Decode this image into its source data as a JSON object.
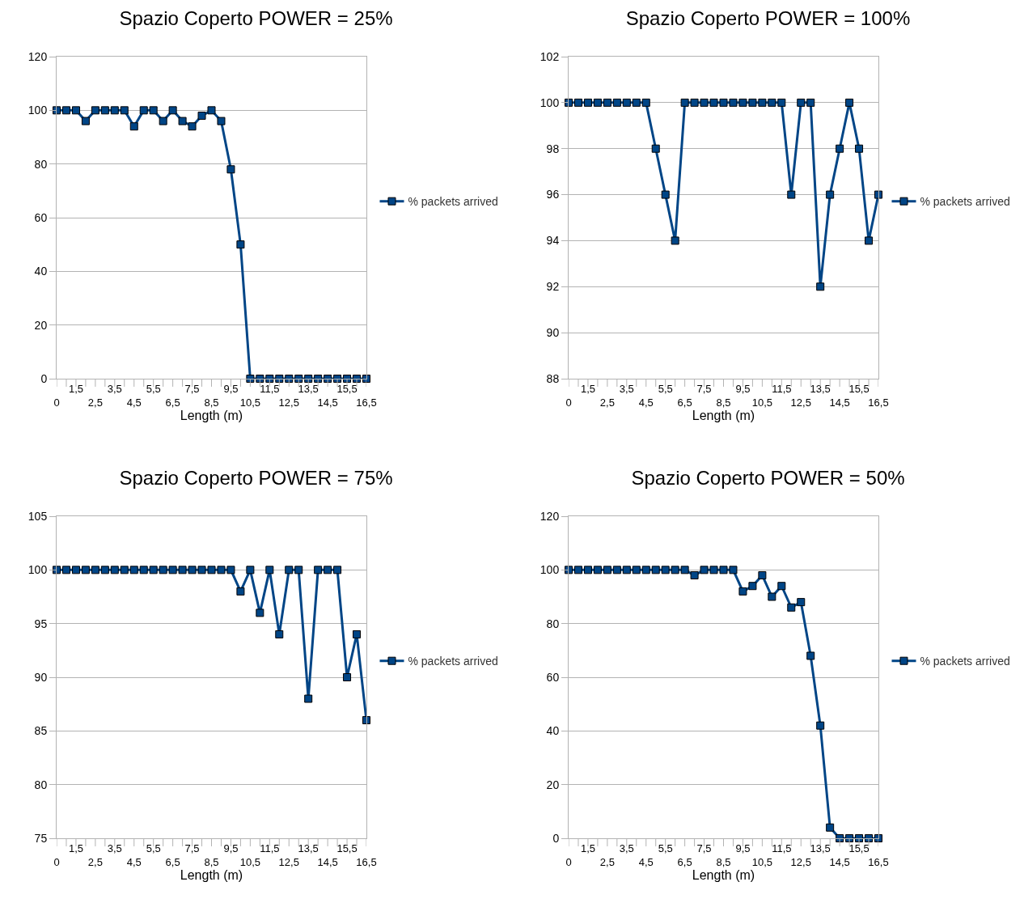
{
  "chart_data": [
    {
      "type": "line",
      "title": "Spazio Coperto POWER = 25%",
      "xlabel": "Length (m)",
      "categories": [
        "0",
        null,
        "1,5",
        null,
        "2,5",
        null,
        "3,5",
        null,
        "4,5",
        null,
        "5,5",
        null,
        "6,5",
        null,
        "7,5",
        null,
        "8,5",
        null,
        "9,5",
        null,
        "10,5",
        null,
        "11,5",
        null,
        "12,5",
        null,
        "13,5",
        null,
        "14,5",
        null,
        "15,5",
        null,
        "16,5"
      ],
      "ylim": [
        0,
        120
      ],
      "yticks": [
        0,
        20,
        40,
        60,
        80,
        100,
        120
      ],
      "grid": "y",
      "legend": "right",
      "marker": "square",
      "line_style": "solid",
      "series": [
        {
          "name": "% packets arrived",
          "color": "#004586",
          "values": [
            100,
            100,
            100,
            96,
            100,
            100,
            100,
            100,
            94,
            100,
            100,
            96,
            100,
            96,
            94,
            98,
            100,
            96,
            78,
            50,
            0,
            0,
            0,
            0,
            0,
            0,
            0,
            0,
            0,
            0,
            0,
            0,
            0
          ]
        }
      ]
    },
    {
      "type": "line",
      "title": "Spazio Coperto POWER = 100%",
      "xlabel": "Length (m)",
      "categories": [
        "0",
        null,
        "1,5",
        null,
        "2,5",
        null,
        "3,5",
        null,
        "4,5",
        null,
        "5,5",
        null,
        "6,5",
        null,
        "7,5",
        null,
        "8,5",
        null,
        "9,5",
        null,
        "10,5",
        null,
        "11,5",
        null,
        "12,5",
        null,
        "13,5",
        null,
        "14,5",
        null,
        "15,5",
        null,
        "16,5"
      ],
      "ylim": [
        88,
        102
      ],
      "yticks": [
        88,
        90,
        92,
        94,
        96,
        98,
        100,
        102
      ],
      "grid": "y",
      "legend": "right",
      "marker": "square",
      "line_style": "solid",
      "series": [
        {
          "name": "% packets arrived",
          "color": "#004586",
          "values": [
            100,
            100,
            100,
            100,
            100,
            100,
            100,
            100,
            100,
            98,
            96,
            94,
            100,
            100,
            100,
            100,
            100,
            100,
            100,
            100,
            100,
            100,
            100,
            96,
            100,
            100,
            92,
            96,
            98,
            100,
            98,
            94,
            96
          ]
        }
      ]
    },
    {
      "type": "line",
      "title": "Spazio Coperto POWER = 75%",
      "xlabel": "Length (m)",
      "categories": [
        "0",
        null,
        "1,5",
        null,
        "2,5",
        null,
        "3,5",
        null,
        "4,5",
        null,
        "5,5",
        null,
        "6,5",
        null,
        "7,5",
        null,
        "8,5",
        null,
        "9,5",
        null,
        "10,5",
        null,
        "11,5",
        null,
        "12,5",
        null,
        "13,5",
        null,
        "14,5",
        null,
        "15,5",
        null,
        "16,5"
      ],
      "ylim": [
        75,
        105
      ],
      "yticks": [
        75,
        80,
        85,
        90,
        95,
        100,
        105
      ],
      "grid": "y",
      "legend": "right",
      "marker": "square",
      "line_style": "solid",
      "series": [
        {
          "name": "% packets arrived",
          "color": "#004586",
          "values": [
            100,
            100,
            100,
            100,
            100,
            100,
            100,
            100,
            100,
            100,
            100,
            100,
            100,
            100,
            100,
            100,
            100,
            100,
            100,
            98,
            100,
            96,
            100,
            94,
            100,
            100,
            88,
            100,
            100,
            100,
            90,
            94,
            86
          ]
        }
      ]
    },
    {
      "type": "line",
      "title": "Spazio Coperto POWER = 50%",
      "xlabel": "Length (m)",
      "categories": [
        "0",
        null,
        "1,5",
        null,
        "2,5",
        null,
        "3,5",
        null,
        "4,5",
        null,
        "5,5",
        null,
        "6,5",
        null,
        "7,5",
        null,
        "8,5",
        null,
        "9,5",
        null,
        "10,5",
        null,
        "11,5",
        null,
        "12,5",
        null,
        "13,5",
        null,
        "14,5",
        null,
        "15,5",
        null,
        "16,5"
      ],
      "ylim": [
        0,
        120
      ],
      "yticks": [
        0,
        20,
        40,
        60,
        80,
        100,
        120
      ],
      "grid": "y",
      "legend": "right",
      "marker": "square",
      "line_style": "solid",
      "series": [
        {
          "name": "% packets arrived",
          "color": "#004586",
          "values": [
            100,
            100,
            100,
            100,
            100,
            100,
            100,
            100,
            100,
            100,
            100,
            100,
            100,
            98,
            100,
            100,
            100,
            100,
            92,
            94,
            98,
            90,
            94,
            86,
            88,
            68,
            42,
            4,
            0,
            0,
            0,
            0,
            0
          ]
        }
      ]
    }
  ]
}
